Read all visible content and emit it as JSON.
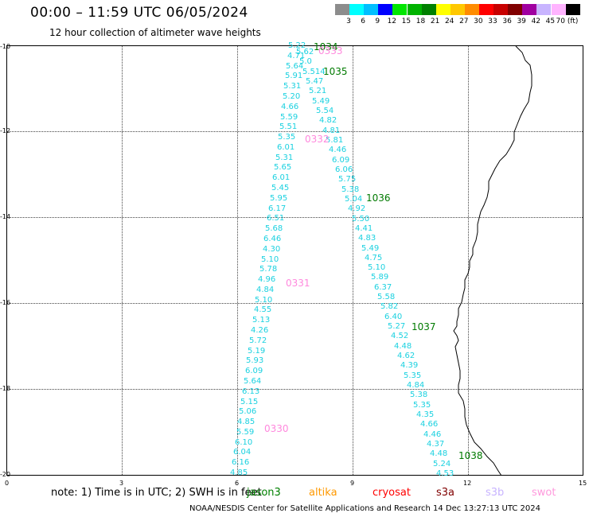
{
  "title": "00:00 – 11:59 UTC 06/05/2024",
  "subtitle": "12 hour collection of altimeter wave heights",
  "legend": {
    "labels": [
      "3",
      "6",
      "9",
      "12",
      "15",
      "18",
      "21",
      "24",
      "27",
      "30",
      "33",
      "36",
      "39",
      "42",
      "45",
      "70 (ft)"
    ],
    "colors": [
      "#8c8c8c",
      "#00ffff",
      "#00bfff",
      "#0000ff",
      "#00e600",
      "#00b300",
      "#008000",
      "#ffff00",
      "#ffc800",
      "#ff8c00",
      "#ff0000",
      "#c80000",
      "#800000",
      "#a000a0",
      "#c8b4ff",
      "#ffb4ff",
      "#000000"
    ]
  },
  "axes": {
    "y_labels": [
      "-10",
      "-12",
      "-14",
      "-16",
      "-18",
      "-20"
    ],
    "x_labels": [
      "0",
      "3",
      "6",
      "9",
      "12",
      "15"
    ]
  },
  "wave_heights": [
    "5.22",
    "5.62",
    "4.71",
    "5.0",
    "5.64",
    "5.514",
    "5.91",
    "5.47",
    "5.31",
    "5.21",
    "5.20",
    "5.49",
    "4.66",
    "5.54",
    "5.59",
    "4.82",
    "5.51",
    "4.81",
    "5.35",
    "5.81",
    "6.01",
    "4.46",
    "5.31",
    "6.09",
    "5.65",
    "6.06",
    "6.01",
    "5.75",
    "5.45",
    "5.38",
    "5.95",
    "5.04",
    "6.17",
    "4.92",
    "6.51",
    "5.50",
    "5.68",
    "4.41",
    "6.46",
    "4.83",
    "4.30",
    "5.49",
    "5.10",
    "4.75",
    "5.78",
    "5.10",
    "4.96",
    "5.89",
    "4.84",
    "6.37",
    "5.10",
    "5.58",
    "4.55",
    "5.82",
    "5.13",
    "6.40",
    "4.26",
    "5.27",
    "5.72",
    "4.52",
    "5.19",
    "4.48",
    "5.93",
    "4.62",
    "6.09",
    "4.39",
    "5.64",
    "5.35",
    "6.13",
    "4.84",
    "5.15",
    "5.38",
    "5.06",
    "5.35",
    "4.85",
    "4.35",
    "5.59",
    "4.66",
    "6.10",
    "4.46",
    "6.04",
    "4.37",
    "6.16",
    "4.48",
    "4.85",
    "5.24",
    "4.53"
  ],
  "cycle_labels": [
    {
      "text": "1034",
      "sat": "jason3"
    },
    {
      "text": "0333",
      "sat": "swot"
    },
    {
      "text": "1035",
      "sat": "jason3"
    },
    {
      "text": "0332",
      "sat": "swot"
    },
    {
      "text": "1036",
      "sat": "jason3"
    },
    {
      "text": "0331",
      "sat": "swot"
    },
    {
      "text": "1037",
      "sat": "jason3"
    },
    {
      "text": "0330",
      "sat": "swot"
    },
    {
      "text": "1038",
      "sat": "jason3"
    }
  ],
  "note": "note: 1) Time is in UTC; 2) SWH is in feet",
  "satellites": [
    {
      "name": "jason3",
      "color": "#008000"
    },
    {
      "name": "altika",
      "color": "#ff9900"
    },
    {
      "name": "cryosat",
      "color": "#ff0000"
    },
    {
      "name": "s3a",
      "color": "#800000"
    },
    {
      "name": "s3b",
      "color": "#c8b4ff"
    },
    {
      "name": "swot",
      "color": "#ff99dd"
    }
  ],
  "footer": "NOAA/NESDIS Center for Satellite Applications and Research    14 Dec 13:27:13 UTC 2024"
}
